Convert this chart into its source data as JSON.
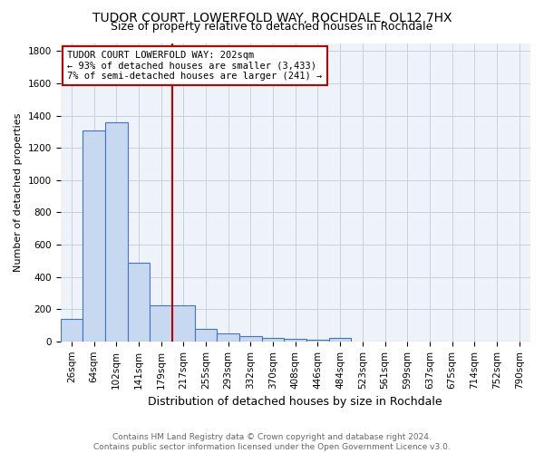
{
  "title": "TUDOR COURT, LOWERFOLD WAY, ROCHDALE, OL12 7HX",
  "subtitle": "Size of property relative to detached houses in Rochdale",
  "xlabel": "Distribution of detached houses by size in Rochdale",
  "ylabel": "Number of detached properties",
  "bar_labels": [
    "26sqm",
    "64sqm",
    "102sqm",
    "141sqm",
    "179sqm",
    "217sqm",
    "255sqm",
    "293sqm",
    "332sqm",
    "370sqm",
    "408sqm",
    "446sqm",
    "484sqm",
    "523sqm",
    "561sqm",
    "599sqm",
    "637sqm",
    "675sqm",
    "714sqm",
    "752sqm",
    "790sqm"
  ],
  "bar_values": [
    140,
    1310,
    1360,
    490,
    225,
    225,
    80,
    50,
    30,
    20,
    15,
    10,
    20,
    0,
    0,
    0,
    0,
    0,
    0,
    0,
    0
  ],
  "bar_color": "#c6d9f0",
  "bar_edge_color": "#4472c4",
  "highlight_line_color": "#c00000",
  "annotation_text": "TUDOR COURT LOWERFOLD WAY: 202sqm\n← 93% of detached houses are smaller (3,433)\n7% of semi-detached houses are larger (241) →",
  "annotation_box_color": "white",
  "annotation_box_edge": "#c00000",
  "ylim": [
    0,
    1850
  ],
  "yticks": [
    0,
    200,
    400,
    600,
    800,
    1000,
    1200,
    1400,
    1600,
    1800
  ],
  "grid_color": "#c8d0dc",
  "bg_color": "#eef3f9",
  "footer_text": "Contains HM Land Registry data © Crown copyright and database right 2024.\nContains public sector information licensed under the Open Government Licence v3.0.",
  "title_fontsize": 10,
  "subtitle_fontsize": 9,
  "xlabel_fontsize": 9,
  "ylabel_fontsize": 8,
  "tick_fontsize": 7.5,
  "annotation_fontsize": 7.5,
  "footer_fontsize": 6.5
}
